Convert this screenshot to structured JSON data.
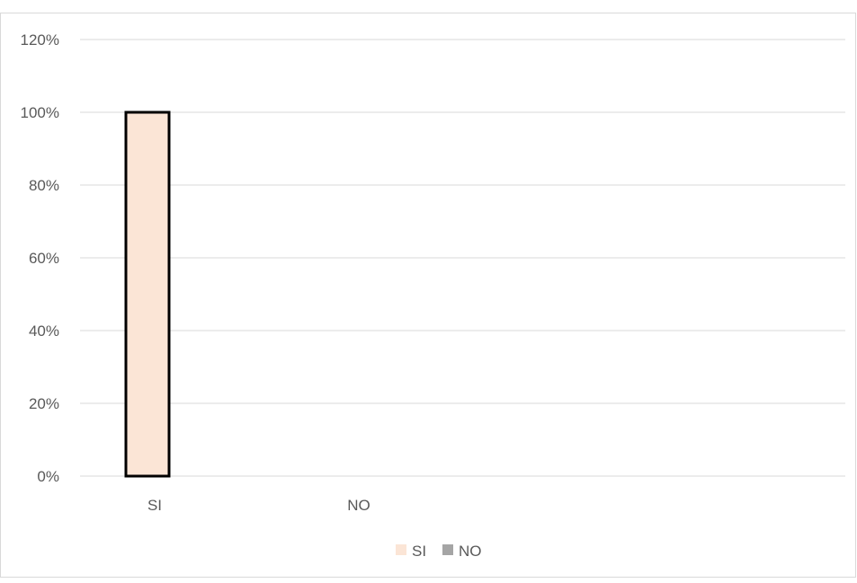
{
  "chart_data": {
    "type": "bar",
    "categories": [
      "SI",
      "NO"
    ],
    "series": [
      {
        "name": "SI",
        "values": [
          1.0,
          null
        ],
        "color": "#FBE5D6",
        "stroke": "#000000"
      },
      {
        "name": "NO",
        "values": [
          null,
          0.0
        ],
        "color": "#A5A5A5",
        "stroke": "#A5A5A5"
      }
    ],
    "y_ticks": [
      "0%",
      "20%",
      "40%",
      "60%",
      "80%",
      "100%",
      "120%"
    ],
    "ylim": [
      0,
      1.2
    ],
    "y_format": "percent",
    "grid": true,
    "legend_position": "bottom",
    "legend": [
      {
        "label": "SI",
        "color": "#FBE5D6"
      },
      {
        "label": "NO",
        "color": "#A5A5A5"
      }
    ],
    "title": "",
    "xlabel": "",
    "ylabel": ""
  }
}
